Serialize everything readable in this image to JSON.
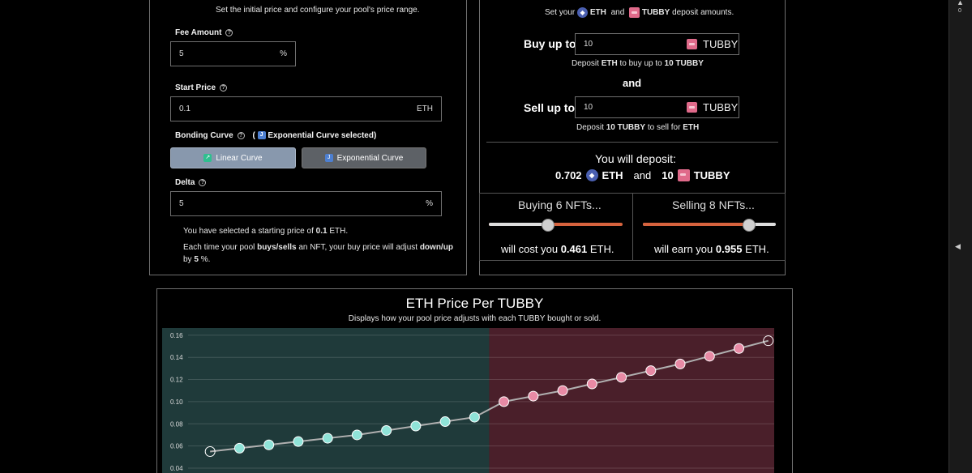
{
  "left": {
    "subtitle": "Set the initial price and configure your pool's price range.",
    "fee": {
      "label": "Fee Amount",
      "value": "5",
      "unit": "%"
    },
    "start": {
      "label": "Start Price",
      "value": "0.1",
      "unit": "ETH"
    },
    "curve": {
      "label": "Bonding Curve",
      "selected_prefix": "(",
      "selected_text": "Exponential Curve selected)",
      "linear_label": "Linear Curve",
      "exponential_label": "Exponential Curve"
    },
    "delta": {
      "label": "Delta",
      "value": "5",
      "unit": "%"
    },
    "summary": {
      "l1_pre": "You have selected a starting price of",
      "l1_val": "0.1",
      "l1_unit": "ETH.",
      "l2_pre": "Each time your pool",
      "l2_b1": "buys/sells",
      "l2_mid": "an NFT, your buy price will adjust",
      "l2_b2": "down/up",
      "l3_pre": "by",
      "l3_val": "5",
      "l3_unit": "%."
    }
  },
  "right": {
    "set_pre": "Set your",
    "set_eth": "ETH",
    "set_and": "and",
    "set_tubby": "TUBBY",
    "set_post": "deposit amounts.",
    "buy": {
      "label": "Buy up to",
      "value": "10",
      "token": "TUBBY"
    },
    "buy_note": {
      "pre": "Deposit",
      "eth": "ETH",
      "mid": "to buy up to",
      "qty": "10 TUBBY"
    },
    "and": "and",
    "sell": {
      "label": "Sell up to",
      "value": "10",
      "token": "TUBBY"
    },
    "sell_note": {
      "pre": "Deposit",
      "qty": "10 TUBBY",
      "mid": "to sell for",
      "eth": "ETH"
    },
    "deposit_title": "You will deposit:",
    "deposit": {
      "eth_amount": "0.702",
      "eth": "ETH",
      "and": "and",
      "tubby_amount": "10",
      "tubby": "TUBBY"
    },
    "buying": {
      "title": "Buying 6 NFTs...",
      "pre": "will cost you",
      "amount": "0.461",
      "unit": "ETH.",
      "level": 0.44
    },
    "selling": {
      "title": "Selling 8 NFTs...",
      "pre": "will earn you",
      "amount": "0.955",
      "unit": "ETH.",
      "level": 0.8
    }
  },
  "chart_title": "ETH Price Per TUBBY",
  "chart_subtitle": "Displays how your pool price adjusts with each TUBBY bought or sold.",
  "chart_data": {
    "type": "line",
    "x": [
      1,
      2,
      3,
      4,
      5,
      6,
      7,
      8,
      9,
      10,
      11,
      12,
      13,
      14,
      15,
      16,
      17,
      18,
      19,
      20
    ],
    "y": [
      0.055,
      0.058,
      0.061,
      0.064,
      0.067,
      0.07,
      0.074,
      0.078,
      0.082,
      0.086,
      0.1,
      0.105,
      0.11,
      0.116,
      0.122,
      0.128,
      0.134,
      0.141,
      0.148,
      0.155
    ],
    "ylim": [
      0.04,
      0.165
    ],
    "yticks": [
      "0.16",
      "0.14",
      "0.12",
      "0.10",
      "0.08",
      "0.06",
      "0.04"
    ],
    "buy_region_end": 10,
    "colors": {
      "buy_points": "#8fe3d8",
      "sell_points": "#e88aa5",
      "buy_bg": "#1f3a3a",
      "sell_bg": "#4a1f2a",
      "line": "#b0b0b0"
    }
  },
  "scroll": {
    "top_label": "0"
  }
}
